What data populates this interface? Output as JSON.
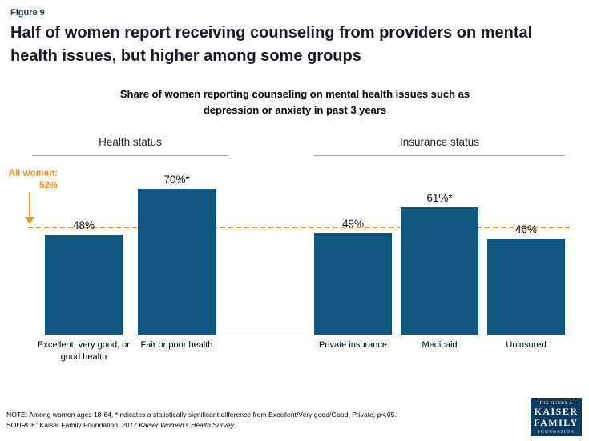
{
  "figure_label": "Figure 9",
  "title": "Half of women report receiving counseling from providers on mental health issues, but higher among some groups",
  "subtitle": "Share of women reporting counseling on mental health issues such as depression or anxiety in past 3 years",
  "reference": {
    "label_line1": "All women:",
    "label_line2": "52%",
    "value": 52
  },
  "chart_data": {
    "type": "bar",
    "title": "Share of women reporting counseling on mental health issues such as depression or anxiety in past 3 years",
    "ylim": [
      0,
      100
    ],
    "grid": false,
    "reference_line": {
      "label": "All women: 52%",
      "value": 52
    },
    "groups": [
      {
        "header": "Health status",
        "categories": [
          "Excellent, very good, or good health",
          "Fair or poor health"
        ],
        "values": [
          48,
          70
        ],
        "value_labels": [
          "48%",
          "70%*"
        ]
      },
      {
        "header": "Insurance status",
        "categories": [
          "Private insurance",
          "Medicaid",
          "Uninsured"
        ],
        "values": [
          49,
          61,
          46
        ],
        "value_labels": [
          "49%",
          "61%*",
          "46%"
        ]
      }
    ]
  },
  "footer": {
    "note": "NOTE: Among women ages 18-64. *Indicates a statistically significant difference from Excellent/Very good/Good; Private; p<.05.",
    "source_prefix": "SOURCE: Kaiser Family Foundation, ",
    "source_italic": "2017 Kaiser Women’s Health Survey."
  },
  "logo": {
    "line1": "THE HENRY J.",
    "line2": "KAISER",
    "line3": "FAMILY",
    "line4": "FOUNDATION"
  },
  "colors": {
    "bar": "#0f567f",
    "accent_orange": "#f79420",
    "logo_bg": "#0d3a5f"
  }
}
